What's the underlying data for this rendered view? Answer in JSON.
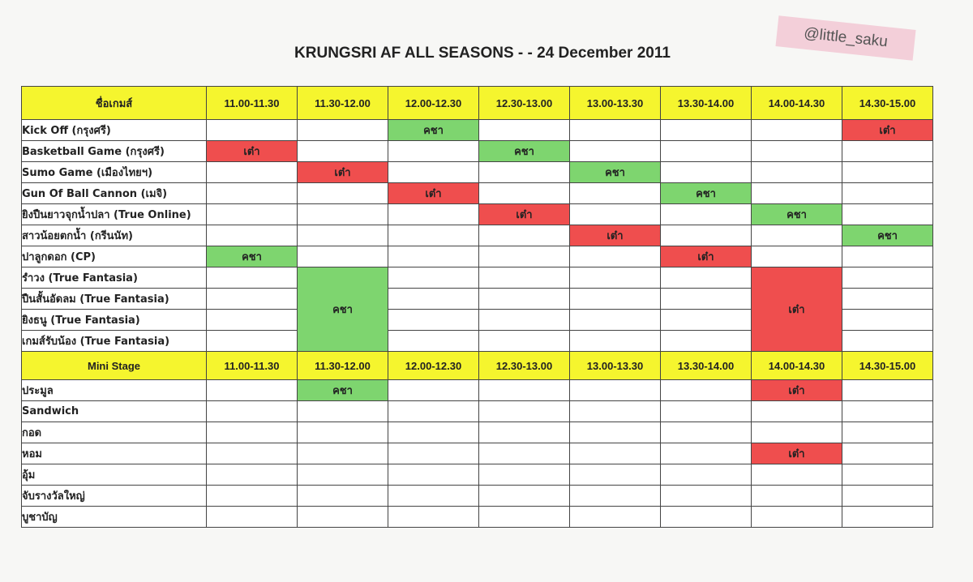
{
  "header": {
    "title": "KRUNGSRI AF ALL SEASONS - - 24 December 2011",
    "watermark": "@little_saku"
  },
  "colors": {
    "header_fill": "#f5f52e",
    "green_fill": "#7ed56f",
    "red_fill": "#ef4e4e"
  },
  "games": {
    "name_header": "ชื่อเกมส์",
    "slots": [
      "11.00-11.30",
      "11.30-12.00",
      "12.00-12.30",
      "12.30-13.00",
      "13.00-13.30",
      "13.30-14.00",
      "14.00-14.30",
      "14.30-15.00"
    ],
    "rows": [
      {
        "name": "Kick Off (กรุงศรี)",
        "cells": [
          "",
          "",
          "คชา",
          "",
          "",
          "",
          "",
          "เต๋า"
        ]
      },
      {
        "name": "Basketball Game (กรุงศรี)",
        "cells": [
          "เต๋า",
          "",
          "",
          "คชา",
          "",
          "",
          "",
          ""
        ]
      },
      {
        "name": "Sumo Game (เมืองไทยฯ)",
        "cells": [
          "",
          "เต๋า",
          "",
          "",
          "คชา",
          "",
          "",
          ""
        ]
      },
      {
        "name": "Gun Of Ball Cannon (เมจิ)",
        "cells": [
          "",
          "",
          "เต๋า",
          "",
          "",
          "คชา",
          "",
          ""
        ]
      },
      {
        "name": "ยิงปืนยาวจุกน้ำปลา (True Online)",
        "cells": [
          "",
          "",
          "",
          "เต๋า",
          "",
          "",
          "คชา",
          ""
        ]
      },
      {
        "name": "สาวน้อยตกน้ำ (กรีนนัท)",
        "cells": [
          "",
          "",
          "",
          "",
          "เต๋า",
          "",
          "",
          "คชา"
        ]
      },
      {
        "name": "ปาลูกดอก (CP)",
        "cells": [
          "คชา",
          "",
          "",
          "",
          "",
          "เต๋า",
          "",
          ""
        ]
      },
      {
        "name": "รำวง (True Fantasia)"
      },
      {
        "name": "ปืนสั้นอัดลม  (True Fantasia)"
      },
      {
        "name": "ยิงธนู  (True Fantasia)"
      },
      {
        "name": "เกมส์รับน้อง  (True Fantasia)"
      }
    ],
    "merged_block_1": "คชา",
    "merged_block_2": "เต๋า"
  },
  "mini_stage": {
    "name_header": "Mini Stage",
    "slots": [
      "11.00-11.30",
      "11.30-12.00",
      "12.00-12.30",
      "12.30-13.00",
      "13.00-13.30",
      "13.30-14.00",
      "14.00-14.30",
      "14.30-15.00"
    ],
    "rows": [
      {
        "name": "ประมูล",
        "cells": [
          "",
          "คชา",
          "",
          "",
          "",
          "",
          "เต๋า",
          ""
        ]
      },
      {
        "name": "Sandwich",
        "cells": [
          "",
          "",
          "",
          "",
          "",
          "",
          "",
          ""
        ]
      },
      {
        "name": "กอด",
        "cells": [
          "",
          "",
          "",
          "",
          "",
          "",
          "",
          ""
        ]
      },
      {
        "name": "หอม",
        "cells": [
          "",
          "",
          "",
          "",
          "",
          "",
          "เต๋า",
          ""
        ]
      },
      {
        "name": "อุ้ม",
        "cells": [
          "",
          "",
          "",
          "",
          "",
          "",
          "",
          ""
        ]
      },
      {
        "name": "จับรางวัลใหญ่",
        "cells": [
          "",
          "",
          "",
          "",
          "",
          "",
          "",
          ""
        ]
      },
      {
        "name": "บูชาบัญ",
        "cells": [
          "",
          "",
          "",
          "",
          "",
          "",
          "",
          ""
        ]
      }
    ]
  }
}
